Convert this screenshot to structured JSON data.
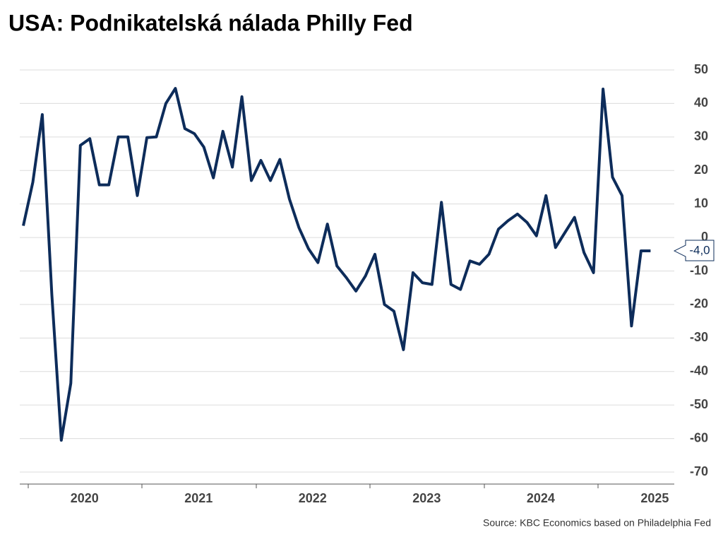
{
  "chart_data": {
    "type": "line",
    "title": "USA: Podnikatelská nálada Philly Fed",
    "source": "Source: KBC Economics based on Philadelphia Fed",
    "categories": [
      null,
      null,
      null,
      null,
      null,
      null,
      "2020",
      null,
      null,
      null,
      null,
      null,
      null,
      null,
      null,
      null,
      null,
      null,
      "2021",
      null,
      null,
      null,
      null,
      null,
      null,
      null,
      null,
      null,
      null,
      null,
      "2022",
      null,
      null,
      null,
      null,
      null,
      null,
      null,
      null,
      null,
      null,
      null,
      "2023",
      null,
      null,
      null,
      null,
      null,
      null,
      null,
      null,
      null,
      null,
      null,
      "2024",
      null,
      null,
      null,
      null,
      null,
      null,
      null,
      null,
      null,
      null,
      null,
      "2025"
    ],
    "series": [
      {
        "name": "Philly Fed",
        "color": "#0d2c5a",
        "values": [
          3.5,
          16.5,
          36.7,
          -17,
          -60.5,
          -43.5,
          27.5,
          29.5,
          15.7,
          15.7,
          30,
          30,
          12.5,
          29.8,
          30,
          40,
          44.5,
          32.5,
          31,
          27,
          17.8,
          31.7,
          21,
          42,
          17,
          23,
          17,
          23.3,
          11.5,
          3,
          -3.3,
          -7.5,
          4,
          -8.5,
          -12,
          -16,
          -11.5,
          -5,
          -20,
          -22,
          -33.5,
          -10.5,
          -13.5,
          -14,
          10.5,
          -14,
          -15.5,
          -7,
          -8,
          -5,
          2.5,
          5,
          7,
          4.5,
          0.5,
          12.5,
          -3,
          1.5,
          6,
          -4.5,
          -10.5,
          44.3,
          18,
          12.5,
          -26.4,
          -4,
          -4
        ]
      }
    ],
    "annotation": {
      "value": -4,
      "label": "-4,0"
    },
    "ylim": [
      -70,
      50
    ],
    "yticks": [
      50,
      40,
      30,
      20,
      10,
      0,
      -10,
      -20,
      -30,
      -40,
      -50,
      -60,
      -70
    ],
    "grid": true
  }
}
